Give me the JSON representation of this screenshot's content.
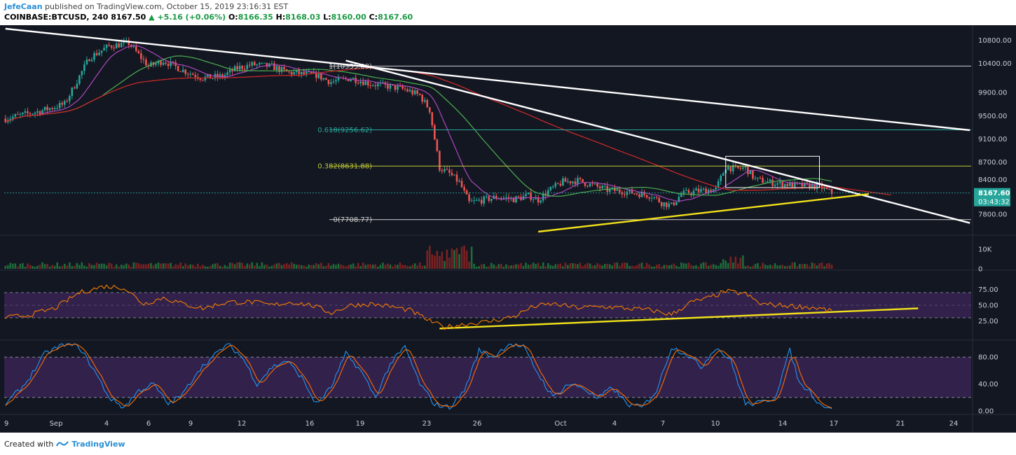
{
  "header": {
    "author": "JefeCaan",
    "published": " published on TradingView.com, October 15, 2019 23:16:31 EST",
    "symbol": "COINBASE:BTCUSD, 240",
    "last": "8167.50",
    "change": "+5.16 (+0.06%)",
    "o_label": "O:",
    "o": "8166.35",
    "h_label": "H:",
    "h": "8168.03",
    "l_label": "L:",
    "l": "8160.00",
    "c_label": "C:",
    "c": "8167.60"
  },
  "footer": {
    "created": "Created with",
    "brand": "TradingView"
  },
  "colors": {
    "bg": "#131722",
    "up": "#26a69a",
    "down": "#ef5350",
    "ma_red": "#c62828",
    "ma_green": "#4caf50",
    "ma_magenta": "#9c27b0",
    "trend_white": "#ffffff",
    "support_yellow": "#f2e11a",
    "fib": "#9acd32",
    "rsi": "#f57c00",
    "stoch_k": "#2196f3",
    "stoch_d": "#ff6d00",
    "band": "#4a2a6e",
    "price_tag": "#26a69a"
  },
  "chart_data": {
    "type": "candlestick",
    "timeframe": "240",
    "price_axis": {
      "ticks": [
        "10800.00",
        "10400.00",
        "9900.00",
        "9500.00",
        "9100.00",
        "8700.00",
        "8400.00",
        "8100.00",
        "7800.00"
      ],
      "ylim": [
        7500,
        11000
      ],
      "last_price": "8167.60",
      "countdown": "03:43:32"
    },
    "x_axis": {
      "ticks": [
        "9",
        "Sep",
        "4",
        "6",
        "9",
        "12",
        "16",
        "19",
        "23",
        "26",
        "Oct",
        "4",
        "7",
        "10",
        "14",
        "17",
        "21",
        "24"
      ]
    },
    "fib_levels": [
      {
        "label": "1(10355.08)",
        "value": 10355.08
      },
      {
        "label": "0.618(9256.62)",
        "value": 9256.62
      },
      {
        "label": "0.382(8631.88)",
        "value": 8631.88
      },
      {
        "label": "0(7708.77)",
        "value": 7708.77
      }
    ],
    "price_anchors": [
      [
        0,
        9450
      ],
      [
        14,
        9580
      ],
      [
        24,
        9700
      ],
      [
        34,
        10500
      ],
      [
        42,
        10700
      ],
      [
        50,
        10750
      ],
      [
        58,
        10350
      ],
      [
        64,
        10450
      ],
      [
        72,
        10280
      ],
      [
        80,
        10150
      ],
      [
        88,
        10180
      ],
      [
        94,
        10320
      ],
      [
        100,
        10380
      ],
      [
        108,
        10350
      ],
      [
        114,
        10250
      ],
      [
        120,
        10220
      ],
      [
        126,
        10200
      ],
      [
        132,
        10080
      ],
      [
        140,
        10150
      ],
      [
        148,
        10050
      ],
      [
        156,
        10000
      ],
      [
        162,
        9950
      ],
      [
        168,
        9850
      ],
      [
        172,
        9600
      ],
      [
        176,
        8600
      ],
      [
        180,
        8500
      ],
      [
        184,
        8350
      ],
      [
        188,
        8000
      ],
      [
        194,
        8050
      ],
      [
        200,
        8100
      ],
      [
        206,
        8060
      ],
      [
        212,
        8120
      ],
      [
        216,
        8050
      ],
      [
        220,
        8200
      ],
      [
        226,
        8360
      ],
      [
        232,
        8380
      ],
      [
        238,
        8300
      ],
      [
        244,
        8220
      ],
      [
        250,
        8200
      ],
      [
        256,
        8160
      ],
      [
        262,
        8120
      ],
      [
        266,
        8000
      ],
      [
        270,
        7950
      ],
      [
        274,
        8150
      ],
      [
        280,
        8200
      ],
      [
        288,
        8230
      ],
      [
        292,
        8620
      ],
      [
        296,
        8580
      ],
      [
        300,
        8600
      ],
      [
        304,
        8400
      ],
      [
        310,
        8350
      ],
      [
        316,
        8320
      ],
      [
        322,
        8300
      ],
      [
        330,
        8280
      ],
      [
        335,
        8167
      ]
    ],
    "volume_axis": {
      "ticks": [
        "10K",
        "0"
      ]
    },
    "rsi": {
      "ticks": [
        "75.00",
        "50.00",
        "25.00"
      ],
      "upper": 70,
      "lower": 30,
      "anchors": [
        [
          0,
          30
        ],
        [
          10,
          35
        ],
        [
          20,
          45
        ],
        [
          30,
          70
        ],
        [
          40,
          80
        ],
        [
          48,
          78
        ],
        [
          56,
          52
        ],
        [
          64,
          62
        ],
        [
          72,
          52
        ],
        [
          80,
          45
        ],
        [
          90,
          55
        ],
        [
          100,
          55
        ],
        [
          108,
          50
        ],
        [
          116,
          55
        ],
        [
          124,
          50
        ],
        [
          132,
          38
        ],
        [
          140,
          50
        ],
        [
          148,
          52
        ],
        [
          156,
          48
        ],
        [
          164,
          42
        ],
        [
          172,
          25
        ],
        [
          178,
          15
        ],
        [
          186,
          20
        ],
        [
          196,
          24
        ],
        [
          206,
          32
        ],
        [
          214,
          48
        ],
        [
          222,
          52
        ],
        [
          232,
          46
        ],
        [
          242,
          48
        ],
        [
          252,
          45
        ],
        [
          262,
          42
        ],
        [
          270,
          35
        ],
        [
          278,
          55
        ],
        [
          284,
          60
        ],
        [
          292,
          72
        ],
        [
          300,
          68
        ],
        [
          306,
          52
        ],
        [
          314,
          50
        ],
        [
          322,
          48
        ],
        [
          330,
          45
        ],
        [
          335,
          40
        ]
      ]
    },
    "stoch": {
      "ticks": [
        "80.00",
        "40.00",
        "0.00"
      ],
      "upper": 80,
      "lower": 20,
      "k_anchors": [
        [
          0,
          10
        ],
        [
          8,
          40
        ],
        [
          16,
          85
        ],
        [
          24,
          100
        ],
        [
          30,
          95
        ],
        [
          36,
          60
        ],
        [
          42,
          20
        ],
        [
          48,
          5
        ],
        [
          54,
          30
        ],
        [
          60,
          40
        ],
        [
          66,
          10
        ],
        [
          72,
          25
        ],
        [
          78,
          60
        ],
        [
          84,
          80
        ],
        [
          90,
          100
        ],
        [
          96,
          80
        ],
        [
          102,
          40
        ],
        [
          108,
          65
        ],
        [
          114,
          75
        ],
        [
          120,
          50
        ],
        [
          126,
          10
        ],
        [
          132,
          35
        ],
        [
          138,
          85
        ],
        [
          144,
          60
        ],
        [
          150,
          20
        ],
        [
          156,
          70
        ],
        [
          162,
          95
        ],
        [
          168,
          40
        ],
        [
          174,
          10
        ],
        [
          180,
          5
        ],
        [
          186,
          30
        ],
        [
          192,
          90
        ],
        [
          198,
          80
        ],
        [
          204,
          100
        ],
        [
          210,
          95
        ],
        [
          216,
          55
        ],
        [
          222,
          20
        ],
        [
          228,
          40
        ],
        [
          234,
          35
        ],
        [
          240,
          18
        ],
        [
          246,
          35
        ],
        [
          252,
          10
        ],
        [
          258,
          5
        ],
        [
          264,
          30
        ],
        [
          270,
          95
        ],
        [
          276,
          85
        ],
        [
          282,
          65
        ],
        [
          288,
          95
        ],
        [
          294,
          75
        ],
        [
          300,
          10
        ],
        [
          306,
          12
        ],
        [
          312,
          20
        ],
        [
          318,
          90
        ],
        [
          322,
          40
        ],
        [
          326,
          30
        ],
        [
          330,
          10
        ],
        [
          335,
          5
        ]
      ]
    },
    "trendlines": [
      {
        "name": "upper-long-downtrend",
        "color": "white",
        "from": [
          0,
          11000
        ],
        "to": [
          391,
          9250
        ]
      },
      {
        "name": "steep-downtrend",
        "color": "white",
        "from": [
          138,
          10450
        ],
        "to": [
          391,
          7650
        ]
      },
      {
        "name": "price-support",
        "color": "yellow",
        "from": [
          216,
          7500
        ],
        "to": [
          350,
          8150
        ]
      },
      {
        "name": "rsi-support",
        "color": "yellow",
        "from": [
          176,
          13
        ],
        "to": [
          370,
          45
        ]
      }
    ]
  }
}
